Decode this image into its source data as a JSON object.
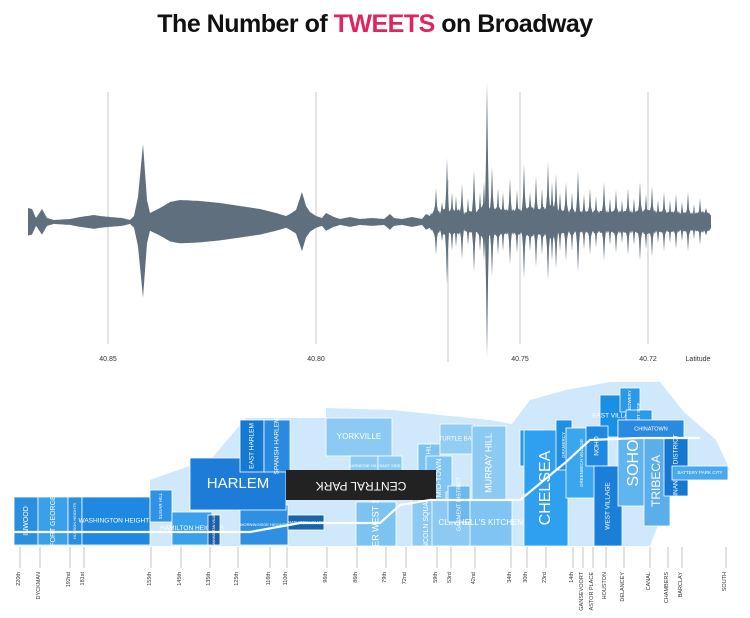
{
  "title": {
    "part1": "The Number of ",
    "part2": "TWEETS",
    "part3": " on Broadway"
  },
  "colors": {
    "title_highlight": "#e0245e",
    "title_dark": "#111111",
    "waveform": "#5f6f7e",
    "gridline": "#c8c8c8",
    "park": "#222222",
    "route": "#ffffff"
  },
  "chart_data": {
    "type": "area",
    "description_shape": "mirrored waveform of tweet counts along Broadway",
    "x_axis_label": "Latitude",
    "x_ticks": [
      "40.85",
      "40.80",
      "40.75",
      "40.72"
    ],
    "grid": true
  },
  "neighborhoods": [
    {
      "label": "INWOOD"
    },
    {
      "label": "FORT GEORGE"
    },
    {
      "label": "HUDSON HEIGHTS"
    },
    {
      "label": "WASHINGTON HEIGHTS"
    },
    {
      "label": "SUGAR HILL"
    },
    {
      "label": "HAMILTON HEIGHTS"
    },
    {
      "label": "MANHATTAN VILLE"
    },
    {
      "label": "MORNINGSIDE HEIGHTS"
    },
    {
      "label": "HARLEM"
    },
    {
      "label": "EAST HARLEM"
    },
    {
      "label": "SPANISH HARLEM"
    },
    {
      "label": "MANHATTAN VALLEY"
    },
    {
      "label": "CENTRAL PARK"
    },
    {
      "label": "YORKVILLE"
    },
    {
      "label": "CARNEGIE HILL"
    },
    {
      "label": "EAST SIDE"
    },
    {
      "label": "UPPER WEST SIDE"
    },
    {
      "label": "LENOX HILL"
    },
    {
      "label": "LINCOLN SQUARE"
    },
    {
      "label": "MID-TOWN"
    },
    {
      "label": "TURTLE BAY"
    },
    {
      "label": "MURRAY HILL"
    },
    {
      "label": "CLINTON"
    },
    {
      "label": "THEATER"
    },
    {
      "label": "GARMENT DISTRICT"
    },
    {
      "label": "HELL'S KITCHEN"
    },
    {
      "label": "ROSE HILL"
    },
    {
      "label": "CHELSEA"
    },
    {
      "label": "GRAMERCY"
    },
    {
      "label": "GREENWICH VILLAGE"
    },
    {
      "label": "EAST VILLAGE"
    },
    {
      "label": "BOWERY"
    },
    {
      "label": "LOWER EAST SIDE"
    },
    {
      "label": "NOHO"
    },
    {
      "label": "WEST VILLAGE"
    },
    {
      "label": "SOHO"
    },
    {
      "label": "TRIBECA"
    },
    {
      "label": "CHINATOWN"
    },
    {
      "label": "FINANCIAL DISTRICT"
    },
    {
      "label": "BATTERY PARK CITY"
    }
  ],
  "streets": [
    "220th",
    "DYCKMAN",
    "192nd",
    "181st",
    "155th",
    "145th",
    "135th",
    "125th",
    "116th",
    "110th",
    "96th",
    "86th",
    "79th",
    "72nd",
    "59th",
    "53rd",
    "42nd",
    "34th",
    "30th",
    "23rd",
    "14th",
    "GANSEVOORT",
    "ASTOR PLACE",
    "HOUSTON",
    "DELANCEY",
    "CANAL",
    "CHAMBERS",
    "BARCLAY",
    "SOUTH"
  ]
}
